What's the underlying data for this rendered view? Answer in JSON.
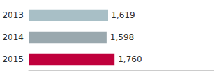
{
  "chart_data": {
    "type": "bar",
    "orientation": "horizontal",
    "categories": [
      "2013",
      "2014",
      "2015"
    ],
    "values": [
      1619,
      1598,
      1760
    ],
    "value_labels": [
      "1,619",
      "1,598",
      "1,760"
    ],
    "colors": [
      "#a8bfc6",
      "#9aa8ae",
      "#c0003c"
    ],
    "xlim": [
      0,
      3800
    ],
    "data_labels": true,
    "tick_labels": "y",
    "grid": false
  }
}
